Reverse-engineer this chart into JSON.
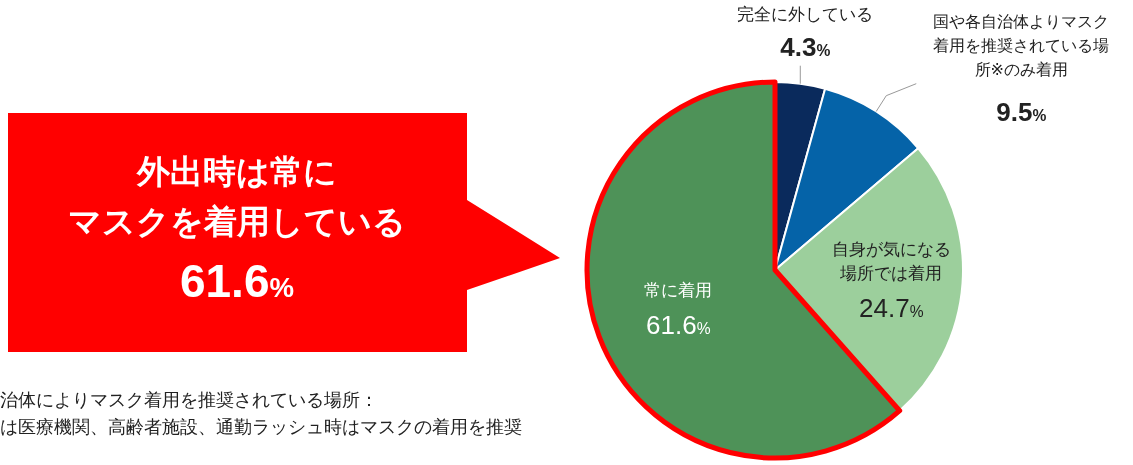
{
  "chart_data": {
    "type": "pie",
    "categories": [
      "完全に外している",
      "国や各自治体よりマスク着用を推奨されている場所※のみ着用",
      "自身が気になる場所では着用",
      "常に着用"
    ],
    "values": [
      4.3,
      9.5,
      24.7,
      61.6
    ],
    "colors": [
      "#0a2a5c",
      "#0563a8",
      "#9ccf9c",
      "#4e9258"
    ],
    "value_labels": [
      "4.3%",
      "9.5%",
      "24.7%",
      "61.6%"
    ],
    "annotations": [
      {
        "text": "外出時は常にマスクを着用している61.6%",
        "x": "常に着用"
      },
      "治体によりマスク着用を推奨されている場所：",
      "は医療機関、高齢者施設、通勤ラッシュ時はマスクの着用を推奨"
    ]
  }
}
